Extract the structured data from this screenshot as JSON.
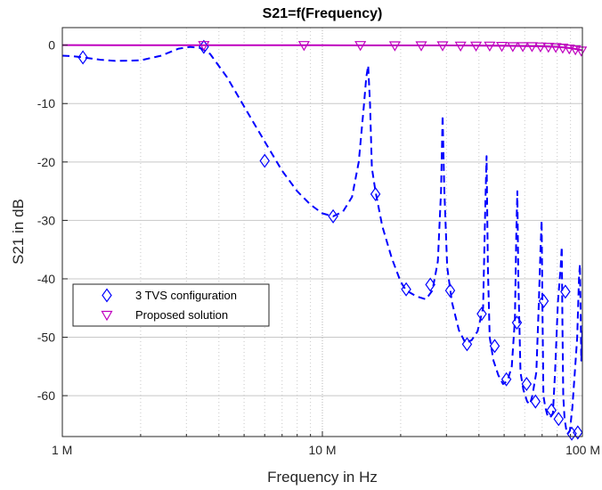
{
  "chart_data": {
    "type": "line",
    "title": "S21=f(Frequency)",
    "xlabel": "Frequency in Hz",
    "ylabel": "S21 in dB",
    "xscale": "log",
    "xlim": [
      1000000,
      100000000
    ],
    "ylim": [
      -67,
      3
    ],
    "grid": "on (major and minor, dotted)",
    "legend_placement": "bottom-left",
    "x_tick_values": [
      1000000,
      10000000,
      100000000
    ],
    "x_tick_labels": [
      "1 M",
      "10 M",
      "100 M"
    ],
    "y_tick_values": [
      0,
      -10,
      -20,
      -30,
      -40,
      -50,
      -60
    ],
    "y_tick_labels": [
      "0",
      "-10",
      "-20",
      "-30",
      "-40",
      "-50",
      "-60"
    ],
    "series": [
      {
        "name": "3 TVS configuration",
        "color": "#0000ff",
        "line_style": "dashed",
        "marker": "diamond",
        "x": [
          1000000,
          1100000,
          1200000,
          1400000,
          1600000,
          2000000,
          2400000,
          2800000,
          3100000,
          3400000,
          3700000,
          4300000,
          5000000,
          6000000,
          7000000,
          8000000,
          9000000,
          10000000,
          11000000,
          12000000,
          13000000,
          13800000,
          14400000,
          14750000,
          15000000,
          15250000,
          15500000,
          16000000,
          17000000,
          18500000,
          20000000,
          21000000,
          23000000,
          25000000,
          26500000,
          27800000,
          28600000,
          29000000,
          29400000,
          30200000,
          31500000,
          33500000,
          35500000,
          37500000,
          39500000,
          41500000,
          42300000,
          42800000,
          43300000,
          44000000,
          45500000,
          47500000,
          49500000,
          51500000,
          53500000,
          55000000,
          55700000,
          56200000,
          56700000,
          57800000,
          59300000,
          61300000,
          62800000,
          64200000,
          66500000,
          68000000,
          69000000,
          69700000,
          70200000,
          70800000,
          72000000,
          73500000,
          75000000,
          77000000,
          78500000,
          80500000,
          82500000,
          83300000,
          83800000,
          84400000,
          85400000,
          86800000,
          88000000,
          89500000,
          91500000,
          93500000,
          95500000,
          97000000,
          97800000,
          98400000,
          99000000,
          99500000,
          100000000
        ],
        "y": [
          -1.8,
          -1.9,
          -2.1,
          -2.5,
          -2.7,
          -2.6,
          -1.8,
          -0.6,
          -0.3,
          -0.5,
          -1.5,
          -5.5,
          -10.5,
          -16.5,
          -21.5,
          -25,
          -27.3,
          -28.8,
          -29.3,
          -28.5,
          -26,
          -20,
          -11,
          -5.5,
          -3.5,
          -10,
          -21,
          -25,
          -31,
          -36.5,
          -40.5,
          -42,
          -43,
          -43.5,
          -42,
          -37,
          -25,
          -12,
          -24,
          -38,
          -44,
          -48.8,
          -51,
          -50.5,
          -49,
          -45,
          -28,
          -19,
          -38,
          -50,
          -54,
          -56.5,
          -58,
          -57.5,
          -55,
          -47,
          -32,
          -25,
          -40,
          -56,
          -59,
          -61,
          -61.5,
          -60,
          -56,
          -44,
          -35,
          -30,
          -45,
          -60,
          -62,
          -63.5,
          -63.8,
          -63,
          -56,
          -44,
          -38,
          -34.5,
          -48,
          -60,
          -64,
          -66,
          -66.5,
          -66,
          -62,
          -56,
          -50,
          -40,
          -37.5,
          -45,
          -54,
          -52,
          -48
        ],
        "markers_x": [
          1200000,
          3500000,
          6000000,
          11000000,
          16000000,
          21000000,
          26000000,
          31000000,
          36000000,
          41000000,
          46000000,
          51000000,
          56000000,
          61000000,
          66000000,
          71000000,
          76000000,
          81000000,
          86000000,
          91000000,
          96000000
        ],
        "markers_y": [
          -2.1,
          -0.3,
          -19.8,
          -29.3,
          -25.5,
          -41.8,
          -41,
          -42,
          -51.2,
          -46,
          -51.5,
          -57.2,
          -47.5,
          -58,
          -61,
          -43.8,
          -62.5,
          -64,
          -42.2,
          -66.5,
          -66.3
        ]
      },
      {
        "name": "Proposed solution",
        "color": "#bf00bf",
        "line_style": "solid",
        "marker": "triangle-down",
        "x": [
          1000000,
          10000000,
          30000000,
          50000000,
          70000000,
          80000000,
          90000000,
          95000000,
          100000000
        ],
        "y": [
          0,
          -0.02,
          -0.05,
          -0.1,
          -0.2,
          -0.3,
          -0.5,
          -0.7,
          -0.9
        ],
        "markers_x": [
          3500000,
          8500000,
          14000000,
          19000000,
          24000000,
          29000000,
          34000000,
          39000000,
          44000000,
          49000000,
          54000000,
          59000000,
          64000000,
          69000000,
          74000000,
          79000000,
          84000000,
          89000000,
          94000000,
          99000000
        ],
        "markers_y": [
          0,
          0,
          0,
          -0.05,
          -0.05,
          -0.05,
          -0.1,
          -0.1,
          -0.1,
          -0.15,
          -0.2,
          -0.2,
          -0.2,
          -0.25,
          -0.3,
          -0.35,
          -0.45,
          -0.6,
          -0.75,
          -0.95
        ]
      }
    ]
  }
}
